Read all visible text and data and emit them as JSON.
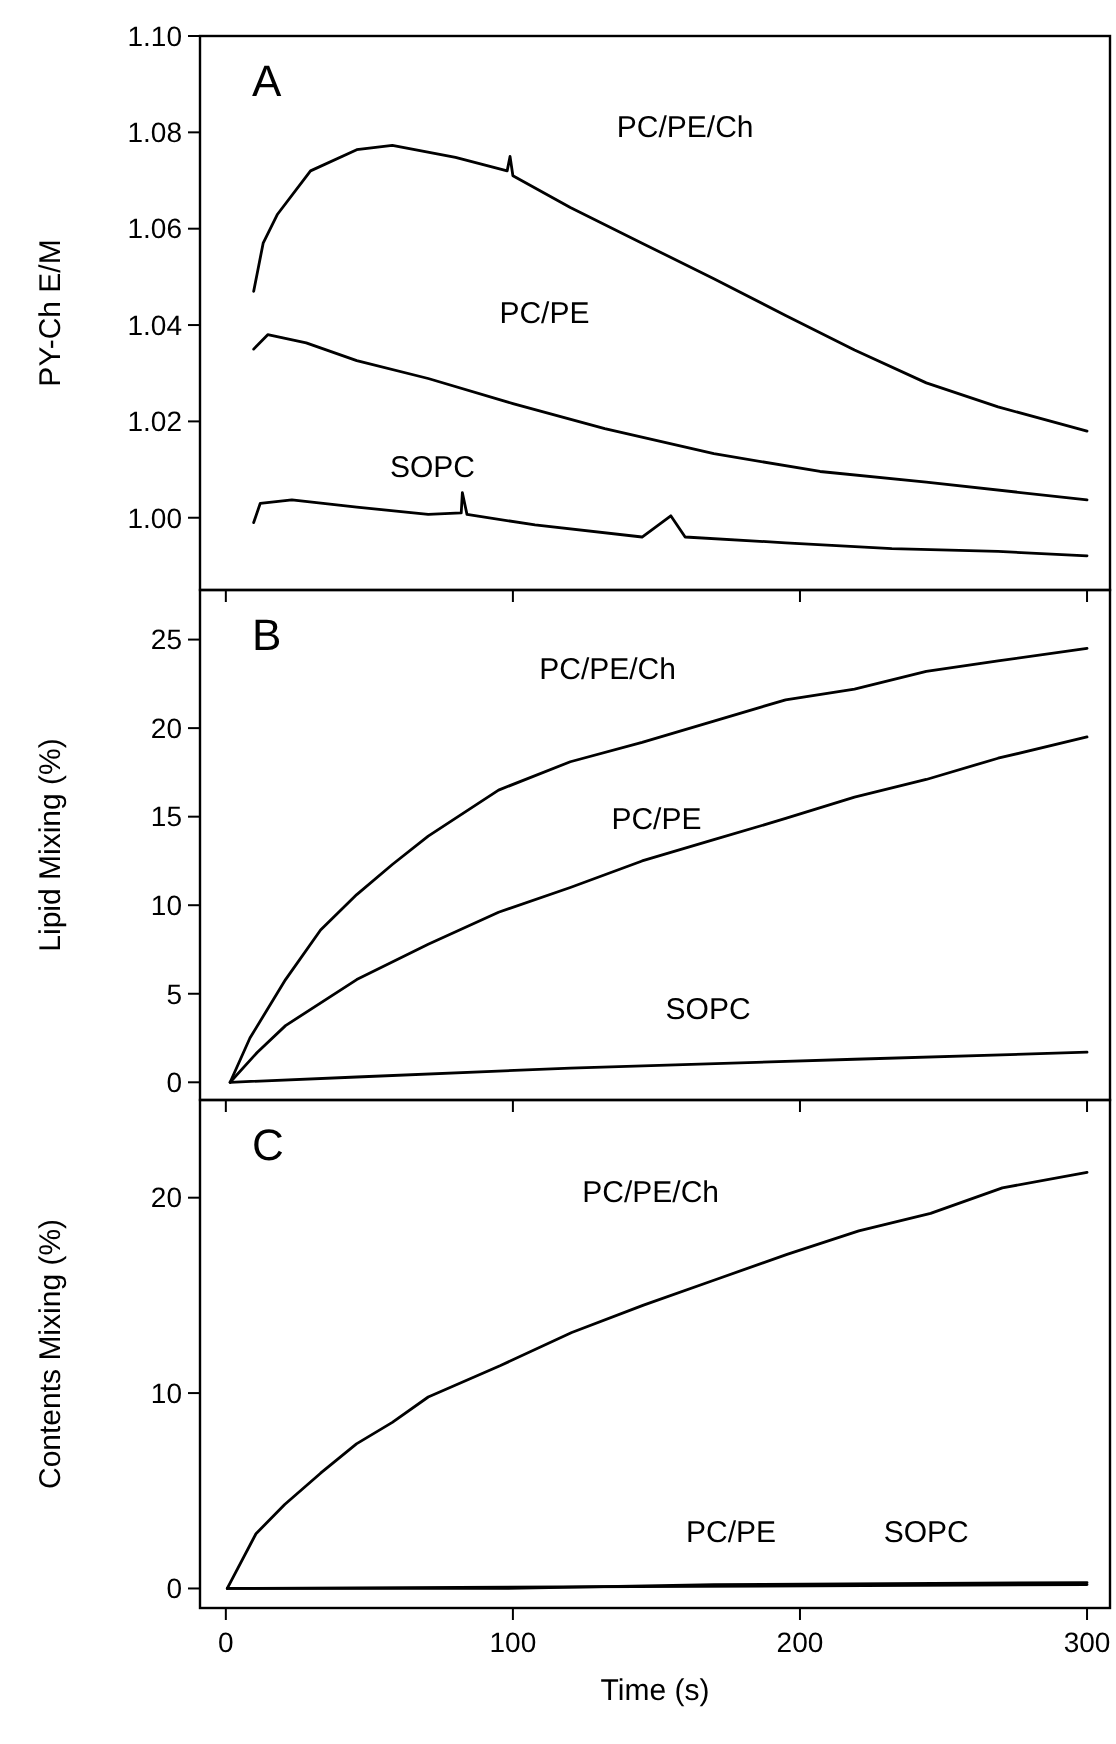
{
  "chart_data": [
    {
      "type": "line",
      "ylabel": "PY-Ch E/M",
      "annotations": [
        "A"
      ],
      "xlim": [
        -9,
        308
      ],
      "xticks": [
        0,
        100,
        200,
        300
      ],
      "ylim": [
        0.985,
        1.1
      ],
      "yticks": [
        {
          "value": 1.0,
          "label": "1.00"
        },
        {
          "value": 1.02,
          "label": "1.02"
        },
        {
          "value": 1.04,
          "label": "1.04"
        },
        {
          "value": 1.06,
          "label": "1.06"
        },
        {
          "value": 1.08,
          "label": "1.08"
        },
        {
          "value": 1.1,
          "label": "1.10"
        }
      ],
      "tick_labels": "y",
      "grid": false,
      "marker": "none",
      "line_style": "solid",
      "series": [
        {
          "name": "PC/PE/Ch",
          "color": "#000000",
          "x": [
            9.7,
            13,
            18,
            29.5,
            45.6,
            58,
            80,
            98,
            99,
            100,
            120,
            145,
            170,
            195,
            219,
            244,
            269,
            300
          ],
          "values": [
            1.047,
            1.057,
            1.063,
            1.072,
            1.0764,
            1.0773,
            1.0748,
            1.072,
            1.075,
            1.071,
            1.0644,
            1.057,
            1.0496,
            1.042,
            1.0348,
            1.028,
            1.023,
            1.018
          ]
        },
        {
          "name": "PC/PE",
          "color": "#000000",
          "x": [
            9.7,
            14.6,
            28,
            45.6,
            70.5,
            100,
            132,
            170,
            207,
            244,
            300
          ],
          "values": [
            1.035,
            1.038,
            1.0363,
            1.0326,
            1.0289,
            1.0237,
            1.0185,
            1.0133,
            1.0096,
            1.0074,
            1.0037
          ]
        },
        {
          "name": "SOPC",
          "color": "#000000",
          "x": [
            9.7,
            12,
            23,
            45.6,
            70.5,
            82,
            82.4,
            84,
            107.7,
            145,
            155,
            160,
            195,
            232,
            269,
            300
          ],
          "values": [
            0.999,
            1.003,
            1.0037,
            1.0022,
            1.0007,
            1.001,
            1.0052,
            1.0007,
            0.9985,
            0.996,
            1.0004,
            0.996,
            0.9948,
            0.9936,
            0.993,
            0.9921
          ]
        }
      ]
    },
    {
      "type": "line",
      "ylabel": "Lipid Mixing (%)",
      "annotations": [
        "B"
      ],
      "xlim": [
        -9,
        308
      ],
      "xticks": [
        0,
        100,
        200,
        300
      ],
      "ylim": [
        -1,
        27.8
      ],
      "yticks": [
        0,
        5,
        10,
        15,
        20,
        25
      ],
      "tick_labels": "y",
      "grid": false,
      "marker": "none",
      "line_style": "solid",
      "series": [
        {
          "name": "PC/PE/Ch",
          "color": "#000000",
          "x": [
            1.5,
            8.4,
            20.8,
            33,
            45.6,
            58,
            70.5,
            95,
            120,
            145,
            170,
            195,
            219,
            244,
            269,
            300
          ],
          "values": [
            0,
            2.5,
            5.8,
            8.6,
            10.6,
            12.3,
            13.9,
            16.5,
            18.1,
            19.2,
            20.4,
            21.6,
            22.2,
            23.2,
            23.8,
            24.5
          ]
        },
        {
          "name": "PC/PE",
          "color": "#000000",
          "x": [
            1.5,
            11,
            20.8,
            45.6,
            70.5,
            95,
            120,
            145,
            170,
            195,
            219,
            244,
            269,
            300
          ],
          "values": [
            0,
            1.7,
            3.2,
            5.8,
            7.8,
            9.6,
            11,
            12.5,
            13.7,
            14.9,
            16.1,
            17.1,
            18.3,
            19.5
          ]
        },
        {
          "name": "SOPC",
          "color": "#000000",
          "x": [
            1.5,
            45.6,
            120,
            219,
            300
          ],
          "values": [
            0,
            0.3,
            0.8,
            1.3,
            1.7
          ]
        }
      ]
    },
    {
      "type": "line",
      "ylabel": "Contents Mixing (%)",
      "xlabel": "Time (s)",
      "annotations": [
        "C"
      ],
      "xlim": [
        -9,
        308
      ],
      "xticks": [
        0,
        100,
        200,
        300
      ],
      "ylim": [
        -1,
        25
      ],
      "yticks": [
        0,
        10,
        20
      ],
      "grid": false,
      "marker": "none",
      "line_style": "solid",
      "series": [
        {
          "name": "PC/PE/Ch",
          "color": "#000000",
          "x": [
            0.5,
            10.5,
            20.5,
            33,
            45.5,
            58,
            70.5,
            95.5,
            120.5,
            145.5,
            170.5,
            195.5,
            220.5,
            245.5,
            270.5,
            300
          ],
          "values": [
            0,
            2.8,
            4.3,
            5.9,
            7.4,
            8.5,
            9.8,
            11.4,
            13.1,
            14.5,
            15.8,
            17.1,
            18.3,
            19.2,
            20.5,
            21.3
          ]
        },
        {
          "name": "PC/PE",
          "color": "#000000",
          "x": [
            0.5,
            95,
            170,
            300
          ],
          "values": [
            0,
            0,
            0.2,
            0.3
          ]
        },
        {
          "name": "SOPC",
          "color": "#000000",
          "x": [
            0.5,
            300
          ],
          "values": [
            0,
            0.2
          ]
        }
      ]
    }
  ]
}
